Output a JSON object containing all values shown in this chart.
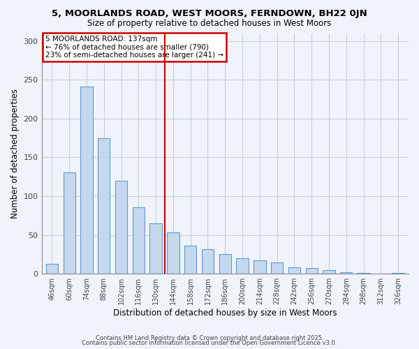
{
  "title": "5, MOORLANDS ROAD, WEST MOORS, FERNDOWN, BH22 0JN",
  "subtitle": "Size of property relative to detached houses in West Moors",
  "xlabel": "Distribution of detached houses by size in West Moors",
  "ylabel": "Number of detached properties",
  "footnote1": "Contains HM Land Registry data © Crown copyright and database right 2025.",
  "footnote2": "Contains public sector information licensed under the Open Government Licence v3.0.",
  "bar_labels": [
    "46sqm",
    "60sqm",
    "74sqm",
    "88sqm",
    "102sqm",
    "116sqm",
    "130sqm",
    "144sqm",
    "158sqm",
    "172sqm",
    "186sqm",
    "200sqm",
    "214sqm",
    "228sqm",
    "242sqm",
    "256sqm",
    "270sqm",
    "284sqm",
    "298sqm",
    "312sqm",
    "326sqm"
  ],
  "bar_values": [
    13,
    131,
    241,
    175,
    120,
    86,
    65,
    53,
    36,
    32,
    25,
    20,
    17,
    15,
    8,
    7,
    5,
    2,
    1,
    0,
    1
  ],
  "bar_color": "#c5d8ed",
  "bar_edge_color": "#5b9bd5",
  "vline_color": "#cc0000",
  "vline_pos": 6.5,
  "annotation_title": "5 MOORLANDS ROAD: 137sqm",
  "annotation_line1": "← 76% of detached houses are smaller (790)",
  "annotation_line2": "23% of semi-detached houses are larger (241) →",
  "annotation_box_color": "#ffffff",
  "annotation_box_edge": "#cc0000",
  "ylim": [
    0,
    310
  ],
  "yticks": [
    0,
    50,
    100,
    150,
    200,
    250,
    300
  ],
  "background_color": "#f0f4fa",
  "grid_color": "#c8d0dc"
}
